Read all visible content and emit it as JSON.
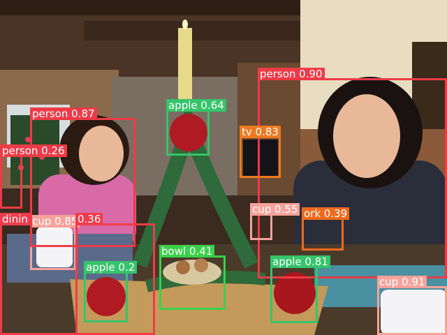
{
  "palette": {
    "person": "#ee3b47",
    "apple": "#35c46a",
    "tv": "#ef7a1f",
    "cup": "#f7a39b",
    "fork": "#f06a1e",
    "bowl": "#3ad14a",
    "dining": "#f03c4a"
  },
  "detections": [
    {
      "id": "dining-table",
      "text": "dinin",
      "cls": "dining"
    },
    {
      "id": "cup-blue",
      "text": "cup 0.85",
      "cls": "cup"
    },
    {
      "id": "dining-score",
      "text": "0.36",
      "cls": "dining"
    },
    {
      "id": "person-left",
      "text": "person 0.87",
      "cls": "person"
    },
    {
      "id": "person-far-left",
      "text": "person 0.26",
      "cls": "person"
    },
    {
      "id": "apple-top",
      "text": "apple 0.64",
      "cls": "apple"
    },
    {
      "id": "person-right",
      "text": "person 0.90",
      "cls": "person"
    },
    {
      "id": "tv",
      "text": "tv 0.83",
      "cls": "tv"
    },
    {
      "id": "cup-middle",
      "text": "cup 0.55",
      "cls": "cup"
    },
    {
      "id": "fork",
      "text": "ork 0.39",
      "cls": "fork"
    },
    {
      "id": "bowl",
      "text": "bowl 0.41",
      "cls": "bowl"
    },
    {
      "id": "apple-left",
      "text": "apple 0.2",
      "cls": "apple"
    },
    {
      "id": "apple-right",
      "text": "apple 0.81",
      "cls": "apple"
    },
    {
      "id": "cup-right",
      "text": "cup 0.91",
      "cls": "cup"
    }
  ]
}
